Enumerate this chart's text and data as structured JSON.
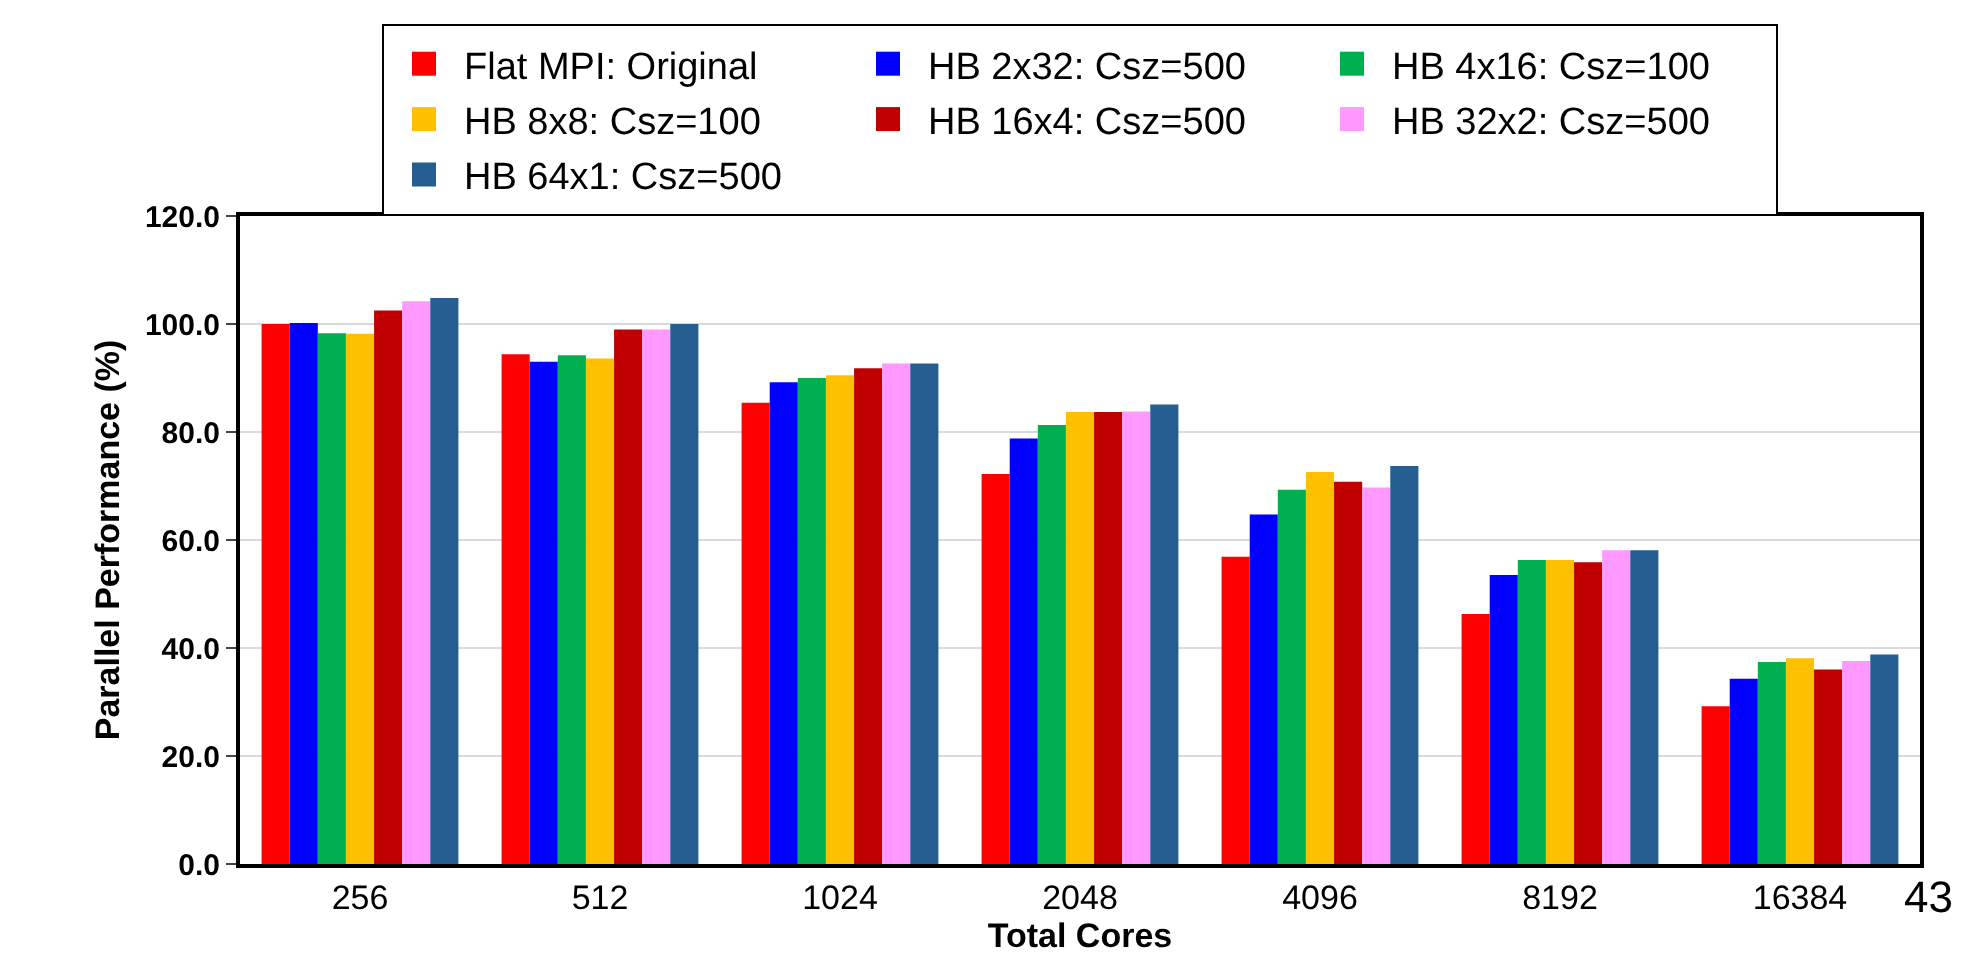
{
  "chart_data": {
    "type": "bar",
    "xlabel": "Total Cores",
    "ylabel": "Parallel Performance (%)",
    "categories": [
      "256",
      "512",
      "1024",
      "2048",
      "4096",
      "8192",
      "16384"
    ],
    "series": [
      {
        "name": "Flat MPI: Original",
        "color": "#ff0000",
        "values": [
          100.0,
          94.4,
          85.4,
          72.2,
          56.9,
          46.3,
          29.2
        ]
      },
      {
        "name": "HB 2x32: Csz=500",
        "color": "#0000ff",
        "values": [
          100.2,
          93.0,
          89.2,
          78.8,
          64.7,
          53.5,
          34.3
        ]
      },
      {
        "name": "HB 4x16: Csz=100",
        "color": "#00b050",
        "values": [
          98.3,
          94.2,
          90.0,
          81.3,
          69.3,
          56.3,
          37.4
        ]
      },
      {
        "name": "HB 8x8: Csz=100",
        "color": "#ffc000",
        "values": [
          98.2,
          93.6,
          90.5,
          83.7,
          72.6,
          56.3,
          38.1
        ]
      },
      {
        "name": "HB 16x4: Csz=500",
        "color": "#c00000",
        "values": [
          102.5,
          99.0,
          91.8,
          83.7,
          70.8,
          55.9,
          36.0
        ]
      },
      {
        "name": "HB 32x2: Csz=500",
        "color": "#ff99ff",
        "values": [
          104.2,
          99.0,
          92.7,
          83.8,
          69.7,
          58.1,
          37.6
        ]
      },
      {
        "name": "HB 64x1: Csz=500",
        "color": "#255e91",
        "values": [
          104.8,
          100.0,
          92.7,
          85.1,
          73.7,
          58.1,
          38.8
        ]
      }
    ],
    "ylim": [
      0,
      120
    ],
    "yticks": [
      {
        "value": 0,
        "label": "0.0"
      },
      {
        "value": 20,
        "label": "20.0"
      },
      {
        "value": 40,
        "label": "40.0"
      },
      {
        "value": 60,
        "label": "60.0"
      },
      {
        "value": 80,
        "label": "80.0"
      },
      {
        "value": 100,
        "label": "100.0"
      },
      {
        "value": 120,
        "label": "120.0"
      }
    ],
    "grid": "y",
    "legend": "top",
    "annotations": [
      "43"
    ]
  }
}
